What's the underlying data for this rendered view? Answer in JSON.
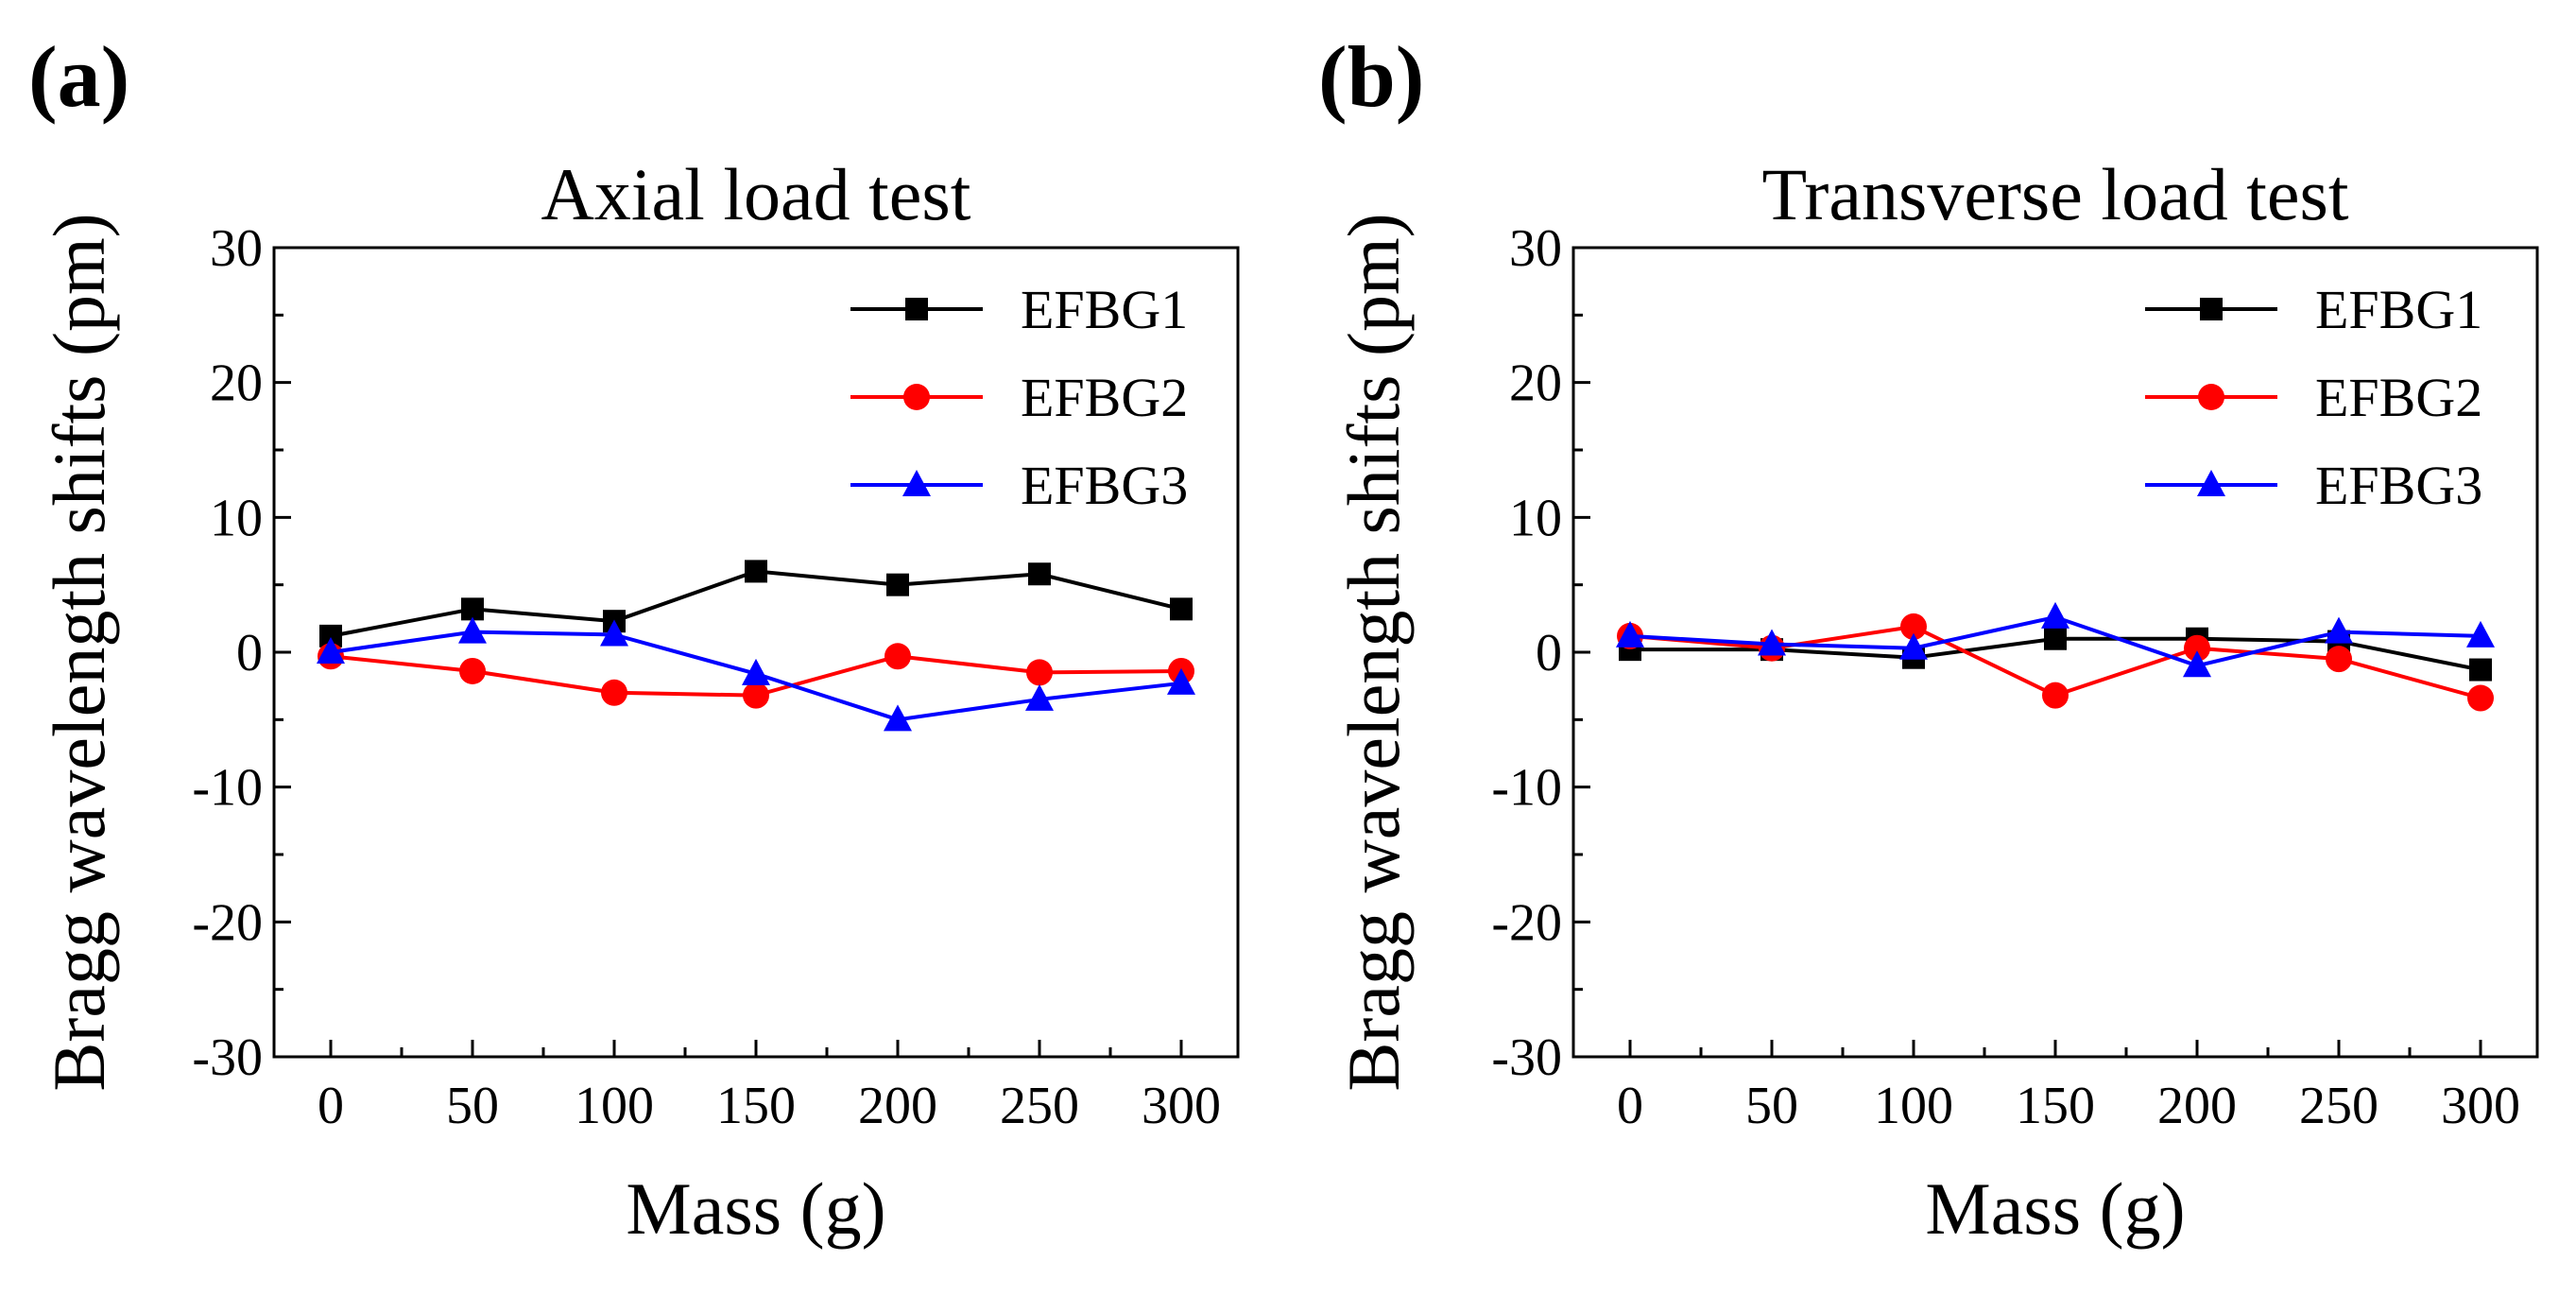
{
  "figure": {
    "panels": [
      "(a)",
      "(b)"
    ]
  },
  "chart_data": [
    {
      "type": "line",
      "panel_label": "(a)",
      "title": "Axial load test",
      "xlabel": "Mass (g)",
      "ylabel": "Bragg wavelength shifts (pm)",
      "x": [
        0,
        50,
        100,
        150,
        200,
        250,
        300
      ],
      "xticks": [
        "0",
        "50",
        "100",
        "150",
        "200",
        "250",
        "300"
      ],
      "xlim": [
        -20,
        320
      ],
      "ylim": [
        -30,
        30
      ],
      "yticks": [
        "-30",
        "-20",
        "-10",
        "0",
        "10",
        "20",
        "30"
      ],
      "legend_position": "top-right",
      "series": [
        {
          "name": "EFBG1",
          "color": "#000000",
          "marker": "square",
          "values": [
            1.2,
            3.2,
            2.3,
            6.0,
            5.0,
            5.8,
            3.2
          ]
        },
        {
          "name": "EFBG2",
          "color": "#ff0000",
          "marker": "circle",
          "values": [
            -0.3,
            -1.4,
            -3.0,
            -3.2,
            -0.3,
            -1.5,
            -1.4
          ]
        },
        {
          "name": "EFBG3",
          "color": "#0000ff",
          "marker": "triangle",
          "values": [
            0.0,
            1.5,
            1.3,
            -1.6,
            -5.0,
            -3.5,
            -2.3
          ]
        }
      ]
    },
    {
      "type": "line",
      "panel_label": "(b)",
      "title": "Transverse load test",
      "xlabel": "Mass (g)",
      "ylabel": "Bragg wavelength shifts (pm)",
      "x": [
        0,
        50,
        100,
        150,
        200,
        250,
        300
      ],
      "xticks": [
        "0",
        "50",
        "100",
        "150",
        "200",
        "250",
        "300"
      ],
      "xlim": [
        -20,
        320
      ],
      "ylim": [
        -30,
        30
      ],
      "yticks": [
        "-30",
        "-20",
        "-10",
        "0",
        "10",
        "20",
        "30"
      ],
      "legend_position": "top-right",
      "series": [
        {
          "name": "EFBG1",
          "color": "#000000",
          "marker": "square",
          "values": [
            0.2,
            0.2,
            -0.4,
            1.0,
            1.0,
            0.8,
            -1.3
          ]
        },
        {
          "name": "EFBG2",
          "color": "#ff0000",
          "marker": "circle",
          "values": [
            1.2,
            0.3,
            1.9,
            -3.2,
            0.3,
            -0.5,
            -3.4
          ]
        },
        {
          "name": "EFBG3",
          "color": "#0000ff",
          "marker": "triangle",
          "values": [
            1.2,
            0.6,
            0.3,
            2.6,
            -1.0,
            1.5,
            1.2
          ]
        }
      ]
    }
  ]
}
